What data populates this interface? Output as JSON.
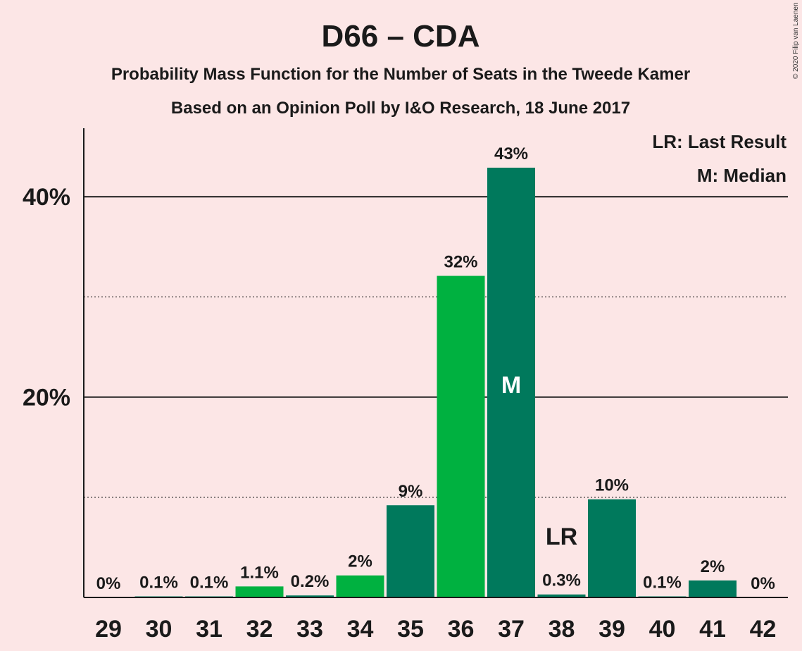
{
  "copyright": "© 2020 Filip van Laenen",
  "chart_data": {
    "type": "bar",
    "title": "D66 – CDA",
    "subtitle_1": "Probability Mass Function for the Number of Seats in the Tweede Kamer",
    "subtitle_2": "Based on an Opinion Poll by I&O Research, 18 June 2017",
    "xlabel": "",
    "ylabel": "",
    "ylim": [
      0,
      47
    ],
    "y_ticks": [
      {
        "value": 20,
        "label": "20%",
        "style": "solid"
      },
      {
        "value": 40,
        "label": "40%",
        "style": "solid"
      }
    ],
    "minor_gridlines": [
      10,
      30
    ],
    "categories": [
      "29",
      "30",
      "31",
      "32",
      "33",
      "34",
      "35",
      "36",
      "37",
      "38",
      "39",
      "40",
      "41",
      "42"
    ],
    "values": [
      0,
      0.1,
      0.1,
      1.1,
      0.2,
      2.2,
      9.2,
      32.1,
      42.9,
      0.3,
      9.8,
      0.1,
      1.7,
      0
    ],
    "data_labels": [
      "0%",
      "0.1%",
      "0.1%",
      "1.1%",
      "0.2%",
      "2%",
      "9%",
      "32%",
      "43%",
      "0.3%",
      "10%",
      "0.1%",
      "2%",
      "0%"
    ],
    "colors": {
      "background": "#fce6e6",
      "bright_green": "#00b140",
      "dark_green": "#00795c",
      "text": "#1a1a1a"
    },
    "bar_colors": [
      "dark",
      "dark",
      "dark",
      "bright",
      "dark",
      "bright",
      "dark",
      "bright",
      "dark",
      "dark",
      "dark",
      "dark",
      "dark",
      "dark"
    ],
    "markers": {
      "median": {
        "category": "37",
        "text": "M"
      },
      "last_result": {
        "category": "38",
        "text": "LR"
      }
    },
    "legend": {
      "position": "top-right",
      "items": [
        "LR: Last Result",
        "M: Median"
      ]
    }
  }
}
